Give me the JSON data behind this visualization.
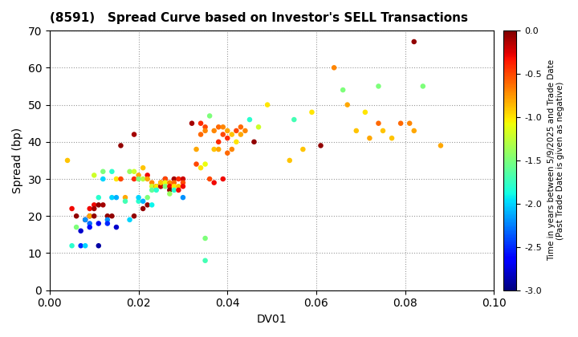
{
  "title": "(8591)   Spread Curve based on Investor's SELL Transactions",
  "xlabel": "DV01",
  "ylabel": "Spread (bp)",
  "xlim": [
    0.0,
    0.1
  ],
  "ylim": [
    0,
    70
  ],
  "xticks": [
    0.0,
    0.02,
    0.04,
    0.06,
    0.08,
    0.1
  ],
  "yticks": [
    0,
    10,
    20,
    30,
    40,
    50,
    60,
    70
  ],
  "cmap": "jet",
  "clim": [
    -3.0,
    0.0
  ],
  "colorbar_ticks": [
    0.0,
    -0.5,
    -1.0,
    -1.5,
    -2.0,
    -2.5,
    -3.0
  ],
  "colorbar_label_line1": "Time in years between 5/9/2025 and Trade Date",
  "colorbar_label_line2": "(Past Trade Date is given as negative)",
  "background_color": "#ffffff",
  "points": [
    [
      0.004,
      35,
      -0.9
    ],
    [
      0.005,
      22,
      -0.3
    ],
    [
      0.005,
      12,
      -1.8
    ],
    [
      0.006,
      20,
      -0.05
    ],
    [
      0.006,
      17,
      -1.5
    ],
    [
      0.007,
      12,
      -2.5
    ],
    [
      0.007,
      16,
      -2.8
    ],
    [
      0.008,
      12,
      -2.0
    ],
    [
      0.008,
      19,
      -0.05
    ],
    [
      0.008,
      19,
      -2.2
    ],
    [
      0.009,
      20,
      -0.05
    ],
    [
      0.009,
      22,
      -0.3
    ],
    [
      0.009,
      20,
      -0.8
    ],
    [
      0.009,
      18,
      -2.3
    ],
    [
      0.009,
      17,
      -2.6
    ],
    [
      0.01,
      31,
      -1.2
    ],
    [
      0.01,
      23,
      -0.3
    ],
    [
      0.01,
      22,
      -0.1
    ],
    [
      0.01,
      20,
      -0.05
    ],
    [
      0.011,
      23,
      -0.05
    ],
    [
      0.011,
      25,
      -1.8
    ],
    [
      0.011,
      18,
      -2.7
    ],
    [
      0.011,
      12,
      -2.9
    ],
    [
      0.012,
      32,
      -1.5
    ],
    [
      0.012,
      30,
      -2.0
    ],
    [
      0.012,
      23,
      -0.1
    ],
    [
      0.013,
      20,
      -0.05
    ],
    [
      0.013,
      19,
      -2.2
    ],
    [
      0.013,
      18,
      -2.5
    ],
    [
      0.014,
      32,
      -1.8
    ],
    [
      0.014,
      25,
      -2.0
    ],
    [
      0.014,
      20,
      -0.05
    ],
    [
      0.015,
      30,
      -1.0
    ],
    [
      0.015,
      25,
      -2.1
    ],
    [
      0.015,
      17,
      -2.8
    ],
    [
      0.016,
      39,
      -0.05
    ],
    [
      0.016,
      30,
      -0.5
    ],
    [
      0.017,
      25,
      -0.8
    ],
    [
      0.017,
      24,
      -1.7
    ],
    [
      0.018,
      32,
      -1.4
    ],
    [
      0.018,
      19,
      -2.0
    ],
    [
      0.019,
      42,
      -0.1
    ],
    [
      0.019,
      30,
      -0.4
    ],
    [
      0.019,
      32,
      -1.2
    ],
    [
      0.019,
      20,
      -0.05
    ],
    [
      0.02,
      24,
      -1.8
    ],
    [
      0.02,
      31,
      -0.8
    ],
    [
      0.02,
      30,
      -1.5
    ],
    [
      0.02,
      25,
      -2.0
    ],
    [
      0.021,
      33,
      -0.9
    ],
    [
      0.021,
      30,
      -1.3
    ],
    [
      0.021,
      24,
      -2.1
    ],
    [
      0.021,
      22,
      -0.05
    ],
    [
      0.022,
      31,
      -0.3
    ],
    [
      0.022,
      23,
      -0.05
    ],
    [
      0.022,
      30,
      -0.8
    ],
    [
      0.022,
      25,
      -1.5
    ],
    [
      0.023,
      23,
      -1.9
    ],
    [
      0.023,
      29,
      -0.7
    ],
    [
      0.023,
      28,
      -1.2
    ],
    [
      0.023,
      27,
      -1.6
    ],
    [
      0.024,
      28,
      -0.05
    ],
    [
      0.024,
      28,
      -1.0
    ],
    [
      0.024,
      27,
      -1.8
    ],
    [
      0.025,
      28,
      -2.0
    ],
    [
      0.025,
      29,
      -0.4
    ],
    [
      0.025,
      28,
      -0.2
    ],
    [
      0.025,
      29,
      -0.9
    ],
    [
      0.026,
      30,
      -0.05
    ],
    [
      0.026,
      30,
      -0.5
    ],
    [
      0.026,
      29,
      -1.1
    ],
    [
      0.026,
      28,
      -1.5
    ],
    [
      0.027,
      29,
      -0.7
    ],
    [
      0.027,
      28,
      -0.3
    ],
    [
      0.027,
      27,
      -0.05
    ],
    [
      0.027,
      26,
      -1.4
    ],
    [
      0.028,
      30,
      -0.1
    ],
    [
      0.028,
      29,
      -0.6
    ],
    [
      0.028,
      28,
      -1.0
    ],
    [
      0.028,
      27,
      -1.8
    ],
    [
      0.029,
      30,
      -0.4
    ],
    [
      0.029,
      28,
      -0.9
    ],
    [
      0.029,
      27,
      -0.3
    ],
    [
      0.03,
      30,
      -0.2
    ],
    [
      0.03,
      25,
      -2.2
    ],
    [
      0.03,
      29,
      -0.5
    ],
    [
      0.03,
      28,
      -0.3
    ],
    [
      0.032,
      45,
      -0.1
    ],
    [
      0.033,
      34,
      -0.5
    ],
    [
      0.033,
      38,
      -0.8
    ],
    [
      0.034,
      45,
      -0.4
    ],
    [
      0.034,
      42,
      -0.6
    ],
    [
      0.034,
      33,
      -1.0
    ],
    [
      0.035,
      44,
      -0.5
    ],
    [
      0.035,
      43,
      -0.7
    ],
    [
      0.035,
      34,
      -1.1
    ],
    [
      0.035,
      14,
      -1.5
    ],
    [
      0.035,
      8,
      -1.7
    ],
    [
      0.036,
      47,
      -1.5
    ],
    [
      0.036,
      30,
      -0.5
    ],
    [
      0.037,
      43,
      -0.7
    ],
    [
      0.037,
      38,
      -0.9
    ],
    [
      0.037,
      29,
      -0.3
    ],
    [
      0.038,
      44,
      -0.6
    ],
    [
      0.038,
      38,
      -0.8
    ],
    [
      0.038,
      40,
      -0.4
    ],
    [
      0.039,
      44,
      -0.7
    ],
    [
      0.039,
      42,
      -0.5
    ],
    [
      0.039,
      30,
      -0.3
    ],
    [
      0.04,
      43,
      -0.8
    ],
    [
      0.04,
      37,
      -0.6
    ],
    [
      0.04,
      41,
      -0.4
    ],
    [
      0.041,
      42,
      -0.9
    ],
    [
      0.041,
      38,
      -0.7
    ],
    [
      0.042,
      43,
      -0.5
    ],
    [
      0.042,
      40,
      -1.0
    ],
    [
      0.043,
      44,
      -0.6
    ],
    [
      0.043,
      42,
      -0.8
    ],
    [
      0.044,
      43,
      -0.7
    ],
    [
      0.045,
      46,
      -1.8
    ],
    [
      0.046,
      40,
      -0.05
    ],
    [
      0.047,
      44,
      -1.2
    ],
    [
      0.049,
      50,
      -1.0
    ],
    [
      0.054,
      35,
      -0.9
    ],
    [
      0.055,
      46,
      -1.7
    ],
    [
      0.057,
      38,
      -0.9
    ],
    [
      0.059,
      48,
      -1.0
    ],
    [
      0.061,
      39,
      -0.05
    ],
    [
      0.064,
      60,
      -0.7
    ],
    [
      0.066,
      54,
      -1.5
    ],
    [
      0.067,
      50,
      -0.8
    ],
    [
      0.069,
      43,
      -0.9
    ],
    [
      0.071,
      48,
      -1.0
    ],
    [
      0.072,
      41,
      -0.8
    ],
    [
      0.074,
      55,
      -1.5
    ],
    [
      0.074,
      45,
      -0.6
    ],
    [
      0.075,
      43,
      -0.9
    ],
    [
      0.077,
      41,
      -0.9
    ],
    [
      0.082,
      67,
      -0.05
    ],
    [
      0.079,
      45,
      -0.6
    ],
    [
      0.081,
      45,
      -0.7
    ],
    [
      0.082,
      43,
      -0.8
    ],
    [
      0.084,
      55,
      -1.5
    ],
    [
      0.088,
      39,
      -0.8
    ]
  ]
}
